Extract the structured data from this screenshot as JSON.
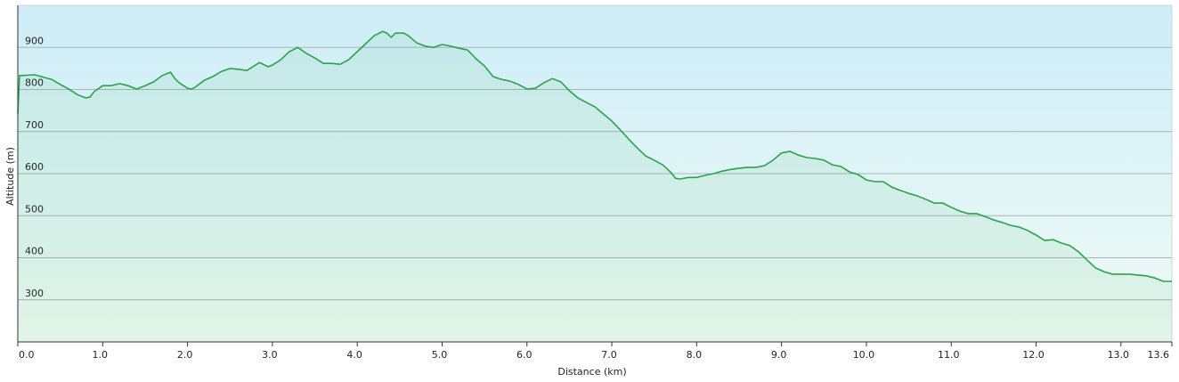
{
  "chart_data": {
    "type": "area",
    "x_label": "Distance  (km)",
    "y_label": "Altitude (m)",
    "color": "#2ca24a",
    "grid": true,
    "x": [
      0,
      0.02,
      0.2,
      0.4,
      0.5,
      0.6,
      0.7,
      0.8,
      0.85,
      0.9,
      1.0,
      1.1,
      1.2,
      1.3,
      1.4,
      1.5,
      1.6,
      1.7,
      1.75,
      1.8,
      1.85,
      1.9,
      2.0,
      2.05,
      2.1,
      2.2,
      2.3,
      2.4,
      2.5,
      2.6,
      2.7,
      2.8,
      2.85,
      2.95,
      3.0,
      3.1,
      3.2,
      3.3,
      3.4,
      3.5,
      3.6,
      3.7,
      3.8,
      3.9,
      4.0,
      4.1,
      4.2,
      4.3,
      4.35,
      4.4,
      4.45,
      4.55,
      4.6,
      4.7,
      4.8,
      4.9,
      5.0,
      5.1,
      5.2,
      5.3,
      5.4,
      5.5,
      5.6,
      5.7,
      5.8,
      5.9,
      6.0,
      6.1,
      6.2,
      6.3,
      6.4,
      6.5,
      6.6,
      6.7,
      6.8,
      6.9,
      7.0,
      7.1,
      7.2,
      7.3,
      7.4,
      7.5,
      7.6,
      7.7,
      7.75,
      7.8,
      7.9,
      8.0,
      8.1,
      8.2,
      8.3,
      8.4,
      8.5,
      8.6,
      8.7,
      8.8,
      8.9,
      9.0,
      9.1,
      9.2,
      9.3,
      9.4,
      9.5,
      9.6,
      9.7,
      9.8,
      9.9,
      10.0,
      10.1,
      10.2,
      10.3,
      10.4,
      10.5,
      10.6,
      10.7,
      10.8,
      10.9,
      11.0,
      11.1,
      11.2,
      11.3,
      11.4,
      11.5,
      11.6,
      11.7,
      11.8,
      11.9,
      12.0,
      12.1,
      12.2,
      12.3,
      12.4,
      12.5,
      12.6,
      12.7,
      12.8,
      12.9,
      13.0,
      13.1,
      13.2,
      13.3,
      13.4,
      13.5,
      13.6
    ],
    "values": [
      742,
      833,
      835,
      824,
      812,
      801,
      788,
      780,
      782,
      795,
      809,
      809,
      814,
      809,
      801,
      809,
      818,
      833,
      837,
      841,
      826,
      816,
      803,
      801,
      807,
      822,
      831,
      843,
      850,
      848,
      845,
      858,
      864,
      854,
      858,
      871,
      890,
      900,
      886,
      875,
      862,
      862,
      860,
      871,
      890,
      909,
      928,
      938,
      934,
      924,
      934,
      934,
      928,
      911,
      903,
      900,
      907,
      903,
      898,
      894,
      873,
      856,
      831,
      824,
      820,
      812,
      801,
      803,
      816,
      826,
      818,
      797,
      780,
      769,
      759,
      742,
      725,
      704,
      682,
      661,
      642,
      632,
      621,
      602,
      589,
      587,
      591,
      591,
      596,
      600,
      606,
      610,
      613,
      615,
      615,
      619,
      632,
      649,
      653,
      644,
      638,
      636,
      632,
      621,
      617,
      604,
      598,
      585,
      581,
      581,
      568,
      560,
      553,
      547,
      539,
      530,
      530,
      520,
      511,
      505,
      505,
      498,
      490,
      484,
      477,
      473,
      465,
      454,
      441,
      443,
      435,
      429,
      414,
      395,
      376,
      367,
      361,
      361,
      361,
      359,
      357,
      352,
      344,
      344
    ],
    "xlim": [
      0,
      13.6
    ],
    "xticks": [
      {
        "value": 0,
        "label": "0.0"
      },
      {
        "value": 1,
        "label": "1.0"
      },
      {
        "value": 2,
        "label": "2.0"
      },
      {
        "value": 3,
        "label": "3.0"
      },
      {
        "value": 4,
        "label": "4.0"
      },
      {
        "value": 5,
        "label": "5.0"
      },
      {
        "value": 6,
        "label": "6.0"
      },
      {
        "value": 7,
        "label": "7.0"
      },
      {
        "value": 8,
        "label": "8.0"
      },
      {
        "value": 9,
        "label": "9.0"
      },
      {
        "value": 10,
        "label": "10.0"
      },
      {
        "value": 11,
        "label": "11.0"
      },
      {
        "value": 12,
        "label": "12.0"
      },
      {
        "value": 13,
        "label": "13.0"
      },
      13.6
    ],
    "ylim": [
      200,
      1000
    ],
    "yticks": [
      300,
      400,
      500,
      600,
      700,
      800,
      900
    ]
  }
}
